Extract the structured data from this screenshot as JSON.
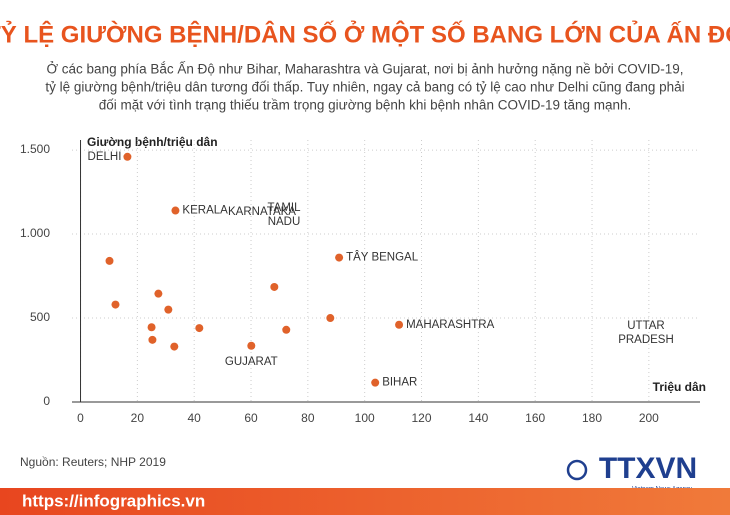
{
  "chart_data": {
    "type": "scatter",
    "title": "TỶ LỆ GIƯỜNG BỆNH/DÂN SỐ Ở MỘT SỐ BANG LỚN CỦA ẤN ĐỘ",
    "subtitle": [
      "Ở các bang phía Bắc Ấn Độ như Bihar, Maharashtra và Gujarat, nơi bị ảnh hưởng nặng nề bởi COVID-19,",
      "tỷ lệ giường bệnh/triệu dân tương đối thấp. Tuy nhiên, ngay cả bang có tỷ lệ cao như Delhi cũng đang phải",
      "đối mặt với tình trạng thiếu trầm trọng giường bệnh khi bệnh nhân COVID-19 tăng mạnh."
    ],
    "y_label": "Giường bệnh/triệu dân",
    "x_label": "Triệu dân",
    "x": [
      16.5,
      33.4,
      10.2,
      91,
      12.3,
      27.4,
      30.9,
      25,
      41.8,
      25.3,
      33,
      68.2,
      60.1,
      72.4,
      87.9,
      112.1,
      103.7
    ],
    "values": [
      1460,
      1140,
      840,
      860,
      580,
      645,
      550,
      445,
      440,
      370,
      330,
      685,
      335,
      430,
      500,
      460,
      115
    ],
    "labels": [
      "DELHI",
      "KERALA",
      null,
      "TÂY BENGAL",
      null,
      null,
      null,
      null,
      null,
      null,
      null,
      null,
      "GUJARAT",
      null,
      null,
      "MAHARASHTRA",
      "BIHAR"
    ],
    "annotations": [
      "KARNATAKA",
      "TAMIL NADU",
      "UTTAR PRADESH"
    ],
    "color": "#e0622a",
    "xlim": [
      -3,
      218
    ],
    "ylim": [
      0,
      1560
    ],
    "xticks": [
      0,
      20,
      40,
      60,
      80,
      100,
      120,
      140,
      160,
      180,
      200
    ],
    "yticks": [
      0,
      500,
      {
        "value": 1000,
        "label": "1.000"
      },
      {
        "value": 1500,
        "label": "1.500"
      }
    ],
    "grid": true,
    "source": "Nguồn: Reuters; NHP 2019",
    "footer_url": "https://infographics.vn",
    "logo": "TTXVN",
    "logo_sub": "Vietnam News Agency"
  }
}
